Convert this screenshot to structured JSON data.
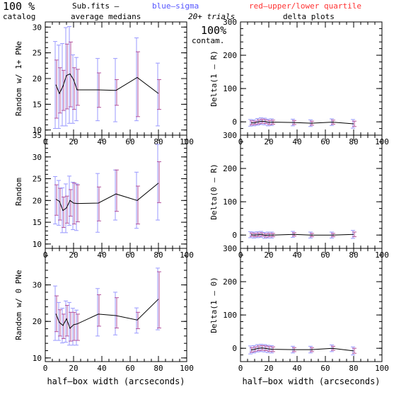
{
  "header": {
    "pct_big": "100 %",
    "catalog": "catalog",
    "subfits": "Sub.fits  –",
    "average_medians": "average medians",
    "blue_sigma": "blue–sigma",
    "red_quartile": "red–upper/lower quartile",
    "trials": "20+ trials",
    "pct_right": "100%",
    "contam": "contam.",
    "delta_plots": "delta plots"
  },
  "colors": {
    "line": "#000000",
    "blue": "#5555ff",
    "red": "#ff3333",
    "sigma_bar": "#9a9aff",
    "quartile_bar": "#b4549c"
  },
  "chart_data": [
    {
      "type": "line",
      "panel": "left-top",
      "xlabel": "",
      "ylabel": "Random w/ 1+ PNe",
      "xlim": [
        0,
        100
      ],
      "ylim": [
        9,
        31
      ],
      "xticks": [
        0,
        20,
        40,
        60,
        80,
        100
      ],
      "yticks": [
        10,
        15,
        20,
        25,
        30
      ],
      "x": [
        7.5,
        10,
        12.5,
        15,
        17.5,
        20,
        22.5,
        37.5,
        50,
        65,
        80
      ],
      "y": [
        18.8,
        17.1,
        18.5,
        20.6,
        20.9,
        19.8,
        17.8,
        17.8,
        17.7,
        20.2,
        17.1
      ],
      "sigma_lo": [
        10.3,
        10.3,
        10.8,
        10.8,
        11.3,
        11.3,
        11.8,
        11.8,
        11.6,
        11.8,
        10.8
      ],
      "sigma_hi": [
        27.2,
        26.5,
        26.8,
        29.9,
        30.1,
        24.6,
        24.1,
        23.9,
        23.9,
        27.9,
        23.0
      ],
      "q_lo": [
        12.3,
        13.3,
        13.8,
        14.1,
        14.5,
        14.0,
        14.8,
        14.4,
        14.8,
        12.6,
        14.0
      ],
      "q_hi": [
        23.6,
        22.1,
        21.6,
        26.7,
        27.1,
        22.1,
        21.8,
        21.1,
        19.8,
        25.2,
        19.8
      ]
    },
    {
      "type": "line",
      "panel": "left-middle",
      "xlabel": "",
      "ylabel": "Random",
      "xlim": [
        0,
        100
      ],
      "ylim": [
        9,
        35
      ],
      "xticks": [
        0,
        20,
        40,
        60,
        80,
        100
      ],
      "yticks": [
        10,
        15,
        20,
        25,
        30,
        35
      ],
      "x": [
        7.5,
        10,
        12.5,
        15,
        17.5,
        20,
        22.5,
        37.5,
        50,
        65,
        80
      ],
      "y": [
        20.3,
        19.8,
        17.7,
        18.3,
        20.0,
        19.4,
        19.3,
        19.4,
        21.5,
        20.0,
        24.0
      ],
      "sigma_lo": [
        14.6,
        14.3,
        12.6,
        12.6,
        14.3,
        13.3,
        13.1,
        12.7,
        15.5,
        13.6,
        15.5
      ],
      "sigma_hi": [
        25.5,
        24.6,
        22.9,
        23.8,
        25.6,
        24.2,
        23.8,
        26.2,
        27.0,
        26.5,
        32.9
      ],
      "q_lo": [
        16.6,
        15.5,
        13.8,
        14.8,
        16.4,
        14.6,
        15.1,
        15.3,
        17.5,
        14.6,
        19.5
      ],
      "q_hi": [
        23.6,
        22.8,
        20.8,
        21.0,
        22.5,
        24.0,
        23.6,
        23.1,
        27.0,
        23.3,
        28.9
      ]
    },
    {
      "type": "line",
      "panel": "left-bottom",
      "xlabel": "half–box width (arcseconds)",
      "ylabel": "Random w/ 0 PNe",
      "xlim": [
        0,
        100
      ],
      "ylim": [
        9,
        40
      ],
      "xticks": [
        0,
        20,
        40,
        60,
        80,
        100
      ],
      "yticks": [
        10,
        20,
        30
      ],
      "x": [
        7.5,
        10,
        12.5,
        15,
        17.5,
        20,
        22.5,
        37.5,
        50,
        65,
        80
      ],
      "y": [
        22.1,
        19.7,
        18.9,
        20.7,
        18.1,
        19.1,
        19.3,
        22.0,
        21.6,
        20.4,
        26.1
      ],
      "sigma_lo": [
        14.8,
        14.8,
        14.1,
        14.3,
        13.5,
        13.5,
        13.5,
        16.0,
        16.3,
        16.8,
        17.7
      ],
      "sigma_hi": [
        29.7,
        25.2,
        23.6,
        25.6,
        25.2,
        23.6,
        23.1,
        29.0,
        28.0,
        23.7,
        34.6
      ],
      "q_lo": [
        17.2,
        16.0,
        15.3,
        16.0,
        14.6,
        14.8,
        14.8,
        18.7,
        18.2,
        18.0,
        18.2
      ],
      "q_hi": [
        27.0,
        23.2,
        22.0,
        24.4,
        22.5,
        22.5,
        22.0,
        27.3,
        26.5,
        22.5,
        33.6
      ]
    },
    {
      "type": "line",
      "panel": "right-top",
      "xlabel": "",
      "ylabel": "Delta(1 – R)",
      "xlim": [
        0,
        100
      ],
      "ylim": [
        -40,
        300
      ],
      "xticks": [
        0,
        20,
        40,
        60,
        80,
        100
      ],
      "yticks": [
        0,
        100,
        200,
        300
      ],
      "x": [
        7.5,
        10,
        12.5,
        15,
        17.5,
        20,
        22.5,
        37.5,
        50,
        65,
        80
      ],
      "y": [
        -3,
        -3,
        0,
        2,
        1,
        -2,
        -1,
        -2,
        -4,
        -1,
        -6
      ],
      "sigma_lo": [
        -13,
        -12,
        -10,
        -8,
        -9,
        -12,
        -11,
        -12,
        -14,
        -11,
        -19
      ],
      "sigma_hi": [
        7,
        6,
        10,
        12,
        11,
        8,
        9,
        8,
        6,
        9,
        7
      ],
      "q_lo": [
        -9,
        -8,
        -6,
        -4,
        -5,
        -8,
        -7,
        -8,
        -10,
        -7,
        -14
      ],
      "q_hi": [
        3,
        2,
        6,
        8,
        7,
        4,
        5,
        4,
        2,
        5,
        2
      ]
    },
    {
      "type": "line",
      "panel": "right-middle",
      "xlabel": "",
      "ylabel": "Delta(0 – R)",
      "xlim": [
        0,
        100
      ],
      "ylim": [
        -40,
        300
      ],
      "xticks": [
        0,
        20,
        40,
        60,
        80,
        100
      ],
      "yticks": [
        0,
        100,
        200,
        300
      ],
      "x": [
        7.5,
        10,
        12.5,
        15,
        17.5,
        20,
        22.5,
        37.5,
        50,
        65,
        80
      ],
      "y": [
        1,
        0,
        1,
        2,
        -1,
        0,
        0,
        2,
        0,
        0,
        2
      ],
      "sigma_lo": [
        -8,
        -9,
        -8,
        -7,
        -10,
        -9,
        -9,
        -7,
        -9,
        -9,
        -10
      ],
      "sigma_hi": [
        10,
        9,
        10,
        11,
        8,
        9,
        9,
        11,
        9,
        9,
        14
      ],
      "q_lo": [
        -4,
        -5,
        -4,
        -3,
        -6,
        -5,
        -5,
        -3,
        -5,
        -5,
        -5
      ],
      "q_hi": [
        6,
        5,
        6,
        7,
        4,
        5,
        5,
        7,
        5,
        5,
        9
      ]
    },
    {
      "type": "line",
      "panel": "right-bottom",
      "xlabel": "half–box width (arcseconds)",
      "ylabel": "Delta(1 – 0)",
      "xlim": [
        0,
        100
      ],
      "ylim": [
        -40,
        300
      ],
      "xticks": [
        0,
        20,
        40,
        60,
        80,
        100
      ],
      "yticks": [
        0,
        100,
        200,
        300
      ],
      "x": [
        7.5,
        10,
        12.5,
        15,
        17.5,
        20,
        22.5,
        37.5,
        50,
        65,
        80
      ],
      "y": [
        -5,
        -3,
        0,
        1,
        0,
        -2,
        -3,
        -4,
        -4,
        0,
        -8
      ],
      "sigma_lo": [
        -17,
        -14,
        -11,
        -10,
        -11,
        -13,
        -14,
        -14,
        -14,
        -10,
        -20
      ],
      "sigma_hi": [
        7,
        8,
        11,
        12,
        11,
        9,
        8,
        6,
        6,
        10,
        4
      ],
      "q_lo": [
        -12,
        -10,
        -7,
        -6,
        -7,
        -9,
        -10,
        -10,
        -10,
        -6,
        -15
      ],
      "q_hi": [
        2,
        4,
        7,
        8,
        7,
        5,
        4,
        2,
        2,
        6,
        0
      ]
    }
  ]
}
